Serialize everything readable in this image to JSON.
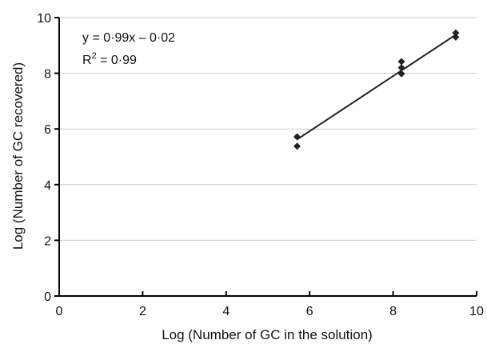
{
  "chart_data": {
    "type": "scatter",
    "title": "",
    "xlabel": "Log (Number of GC in the solution)",
    "ylabel": "Log (Number of GC recovered)",
    "xlim": [
      0,
      10
    ],
    "ylim": [
      0,
      10
    ],
    "x_ticks": [
      "0",
      "2",
      "4",
      "6",
      "8",
      "10"
    ],
    "y_ticks": [
      "0",
      "2",
      "4",
      "6",
      "8",
      "10"
    ],
    "grid": "horizontal",
    "legend": "none",
    "points": [
      {
        "x": 5.7,
        "y": 5.72
      },
      {
        "x": 5.7,
        "y": 5.38
      },
      {
        "x": 8.2,
        "y": 8.42
      },
      {
        "x": 8.2,
        "y": 8.2
      },
      {
        "x": 8.2,
        "y": 7.98
      },
      {
        "x": 9.5,
        "y": 9.45
      },
      {
        "x": 9.5,
        "y": 9.3
      }
    ],
    "fit_line": {
      "slope": 0.99,
      "intercept": -0.02,
      "x_range": [
        5.7,
        9.5
      ]
    },
    "annotations": {
      "equation": "y = 0·99x – 0·02",
      "r2_label": "R",
      "r2_sup": "2",
      "r2_value": " = 0·99"
    },
    "colors": {
      "points": "#222222",
      "line": "#222222",
      "grid": "#cccccc",
      "axis": "#000000"
    }
  }
}
